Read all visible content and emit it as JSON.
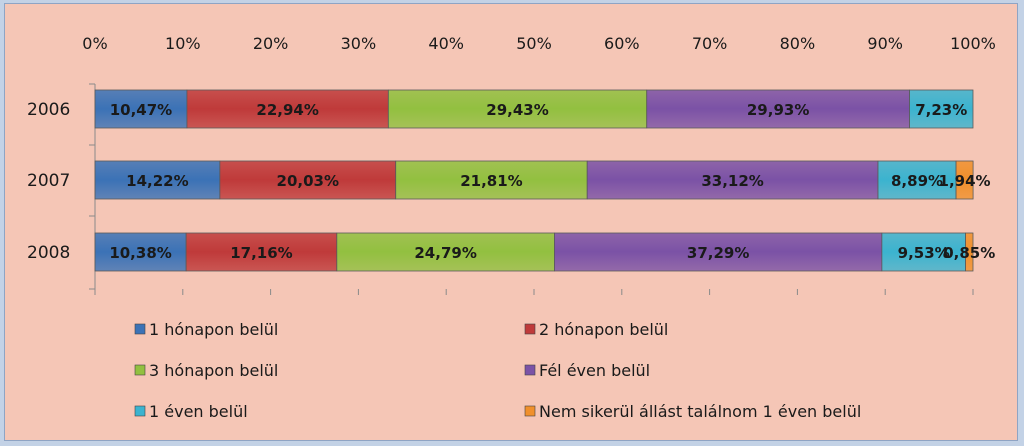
{
  "chart_data": {
    "type": "bar",
    "orientation": "horizontal",
    "stacked": "percent",
    "categories": [
      "2006",
      "2007",
      "2008"
    ],
    "xlim": [
      0,
      100
    ],
    "x_ticks": [
      "0%",
      "10%",
      "20%",
      "30%",
      "40%",
      "50%",
      "60%",
      "70%",
      "80%",
      "90%",
      "100%"
    ],
    "grid": false,
    "legend_position": "bottom",
    "series": [
      {
        "name": "1 hónapon belül",
        "color": "#3b72b6",
        "values": [
          10.47,
          14.22,
          10.38
        ],
        "labels": [
          "10,47%",
          "14,22%",
          "10,38%"
        ]
      },
      {
        "name": "2 hónapon belül",
        "color": "#bf3a3a",
        "values": [
          22.94,
          20.03,
          17.16
        ],
        "labels": [
          "22,94%",
          "20,03%",
          "17,16%"
        ]
      },
      {
        "name": "3 hónapon belül",
        "color": "#92c040",
        "values": [
          29.43,
          21.81,
          24.79
        ],
        "labels": [
          "29,43%",
          "21,81%",
          "24,79%"
        ]
      },
      {
        "name": "Fél éven belül",
        "color": "#7b52a6",
        "values": [
          29.93,
          33.12,
          37.29
        ],
        "labels": [
          "29,93%",
          "33,12%",
          "37,29%"
        ]
      },
      {
        "name": "1 éven belül",
        "color": "#3bb3cf",
        "values": [
          7.23,
          8.89,
          9.53
        ],
        "labels": [
          "7,23%",
          "8,89%",
          "9,53%"
        ]
      },
      {
        "name": "Nem sikerül állást találnom 1 éven belül",
        "color": "#f0902c",
        "values": [
          0,
          1.94,
          0.85
        ],
        "labels": [
          "",
          "1,94%",
          "0,85%"
        ]
      }
    ]
  }
}
